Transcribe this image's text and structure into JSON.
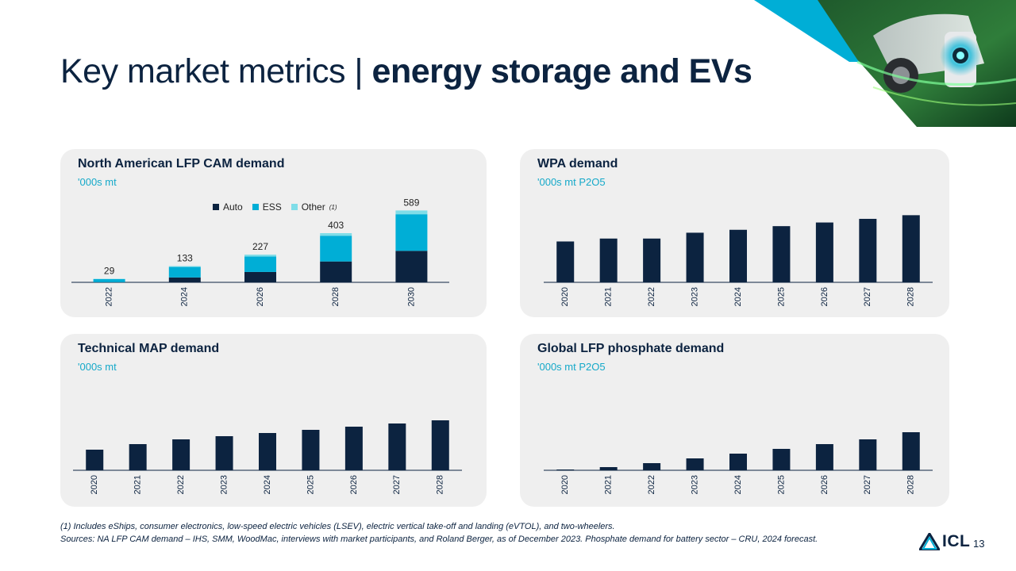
{
  "page": {
    "title_regular": "Key market metrics | ",
    "title_bold": "energy storage and EVs",
    "page_number": "13",
    "logo_text": "ICL"
  },
  "footnotes": {
    "note1": "(1) Includes eShips, consumer electronics, low-speed electric vehicles (LSEV), electric vertical take-off and landing (eVTOL), and two-wheelers.",
    "sources": "Sources: NA LFP CAM demand – IHS, SMM, WoodMac, interviews with market participants, and Roland Berger, as of December 2023. Phosphate demand for battery sector – CRU, 2024 forecast."
  },
  "colors": {
    "navy": "#0c2340",
    "cyan": "#00aed6",
    "light_cyan": "#7fdde8",
    "panel_bg": "#efefef",
    "unit_text": "#15a9c9"
  },
  "chart_data": [
    {
      "type": "bar",
      "stacked": true,
      "title": "North American LFP CAM demand",
      "unit": "'000s mt",
      "categories": [
        "2022",
        "2024",
        "2026",
        "2028",
        "2030"
      ],
      "series": [
        {
          "name": "Auto",
          "color": "#0c2340",
          "values": [
            1,
            40,
            85,
            171,
            258
          ]
        },
        {
          "name": "ESS",
          "color": "#00aed6",
          "values": [
            26,
            86,
            127,
            211,
            300
          ]
        },
        {
          "name": "Other",
          "name_sup": "(1)",
          "color": "#7fdde8",
          "values": [
            2,
            7,
            15,
            21,
            31
          ]
        }
      ],
      "totals": [
        29,
        133,
        227,
        403,
        589
      ],
      "ylim": [
        0,
        650
      ],
      "legend": "top-center"
    },
    {
      "type": "bar",
      "title": "WPA demand",
      "unit": "'000s mt P2O5",
      "categories": [
        "2020",
        "2021",
        "2022",
        "2023",
        "2024",
        "2025",
        "2026",
        "2027",
        "2028"
      ],
      "values": [
        56,
        60,
        60,
        68,
        72,
        77,
        82,
        87,
        92
      ],
      "ylim": [
        0,
        125
      ]
    },
    {
      "type": "bar",
      "title": "Technical MAP demand",
      "unit": "'000s mt",
      "categories": [
        "2020",
        "2021",
        "2022",
        "2023",
        "2024",
        "2025",
        "2026",
        "2027",
        "2028"
      ],
      "values": [
        26,
        33,
        39,
        43,
        47,
        51,
        55,
        59,
        63
      ],
      "ylim": [
        0,
        100
      ]
    },
    {
      "type": "bar",
      "title": "Global LFP phosphate demand",
      "unit": "'000s mt P2O5",
      "categories": [
        "2020",
        "2021",
        "2022",
        "2023",
        "2024",
        "2025",
        "2026",
        "2027",
        "2028"
      ],
      "values": [
        1,
        4,
        9,
        15,
        21,
        27,
        33,
        39,
        48
      ],
      "ylim": [
        0,
        100
      ]
    }
  ]
}
